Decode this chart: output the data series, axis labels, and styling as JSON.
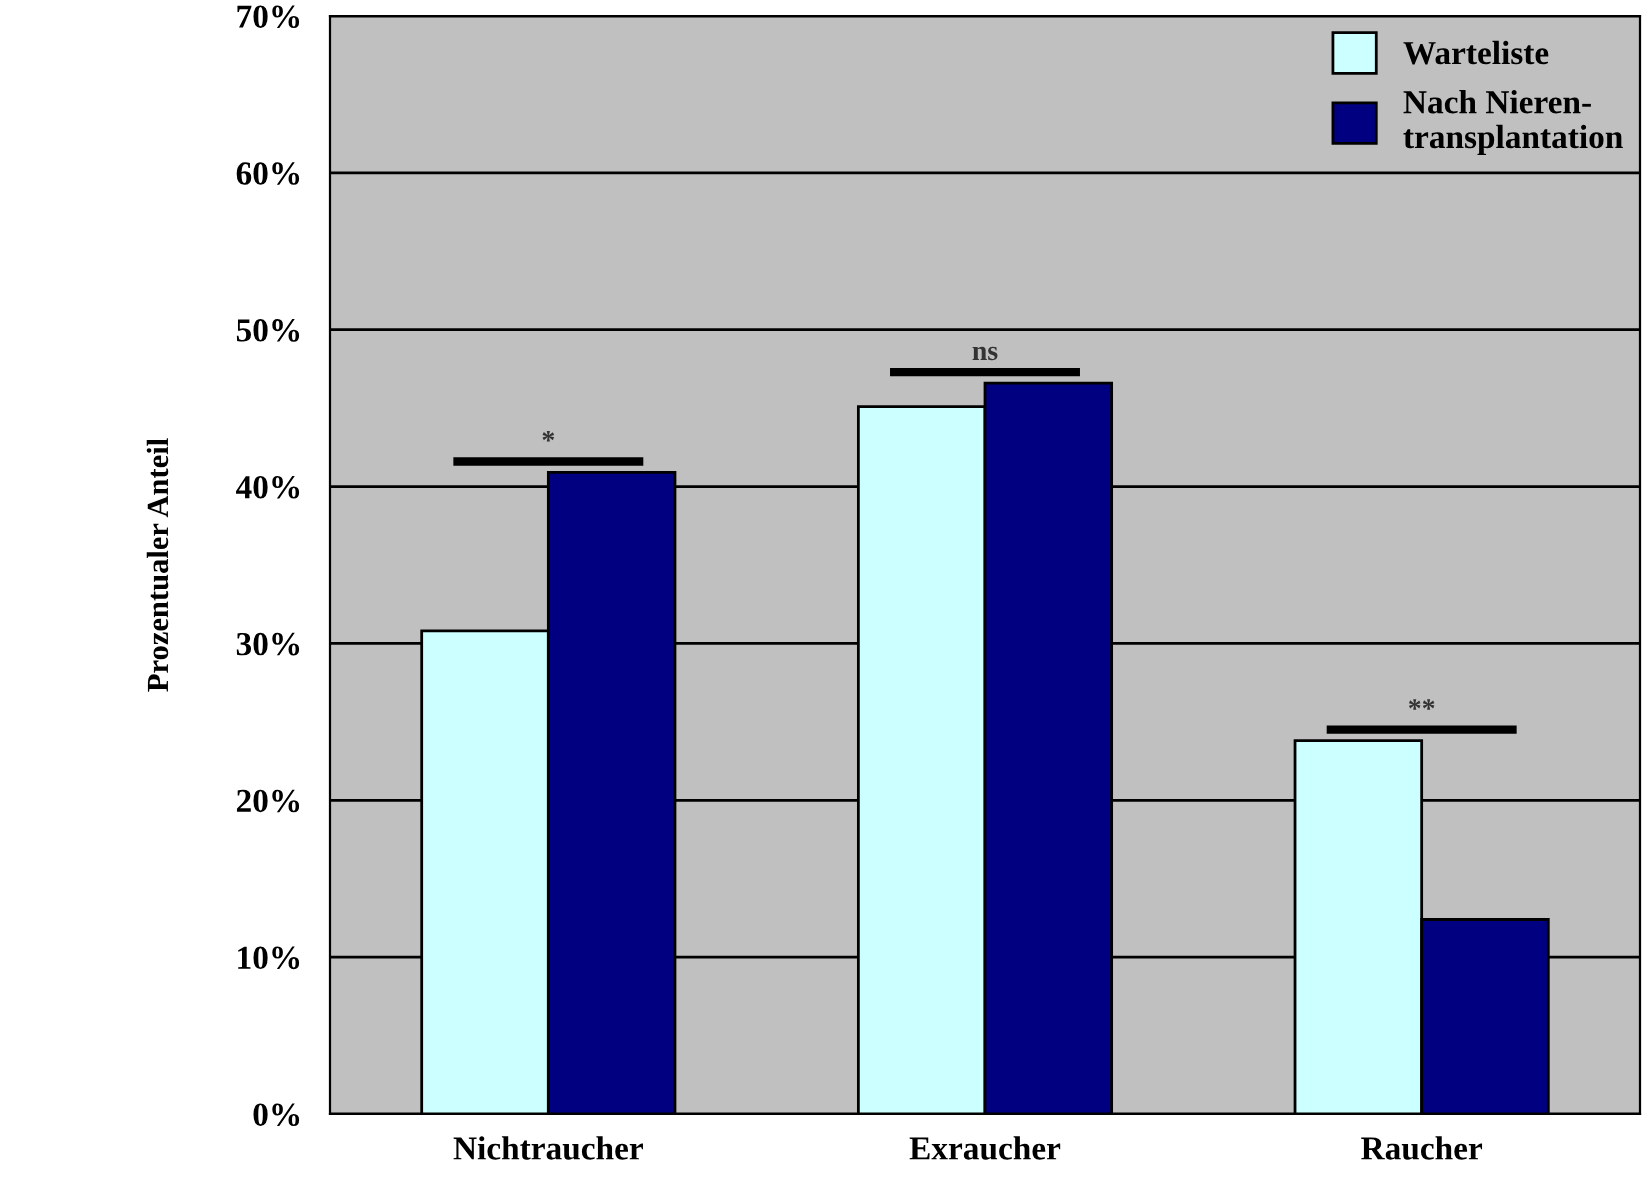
{
  "chart_data": {
    "type": "bar",
    "ylabel": "Prozentualer Anteil",
    "categories": [
      "Nichtraucher",
      "Exraucher",
      "Raucher"
    ],
    "series": [
      {
        "name": "Warteliste",
        "color": "#ccffff",
        "values": [
          30.8,
          45.1,
          23.8
        ]
      },
      {
        "name": "Nach Nieren-\ntransplantation",
        "color": "#000080",
        "values": [
          40.9,
          46.6,
          12.4
        ]
      }
    ],
    "ylim": [
      0,
      70
    ],
    "yticks": [
      {
        "value": 0,
        "label": "0%"
      },
      {
        "value": 10,
        "label": "10%"
      },
      {
        "value": 20,
        "label": "20%"
      },
      {
        "value": 30,
        "label": "30%"
      },
      {
        "value": 40,
        "label": "40%"
      },
      {
        "value": 50,
        "label": "50%"
      },
      {
        "value": 60,
        "label": "60%"
      },
      {
        "value": 70,
        "label": "70%"
      }
    ],
    "grid": "y",
    "legend": "top right",
    "annotations": [
      "*",
      "ns",
      "**"
    ]
  }
}
